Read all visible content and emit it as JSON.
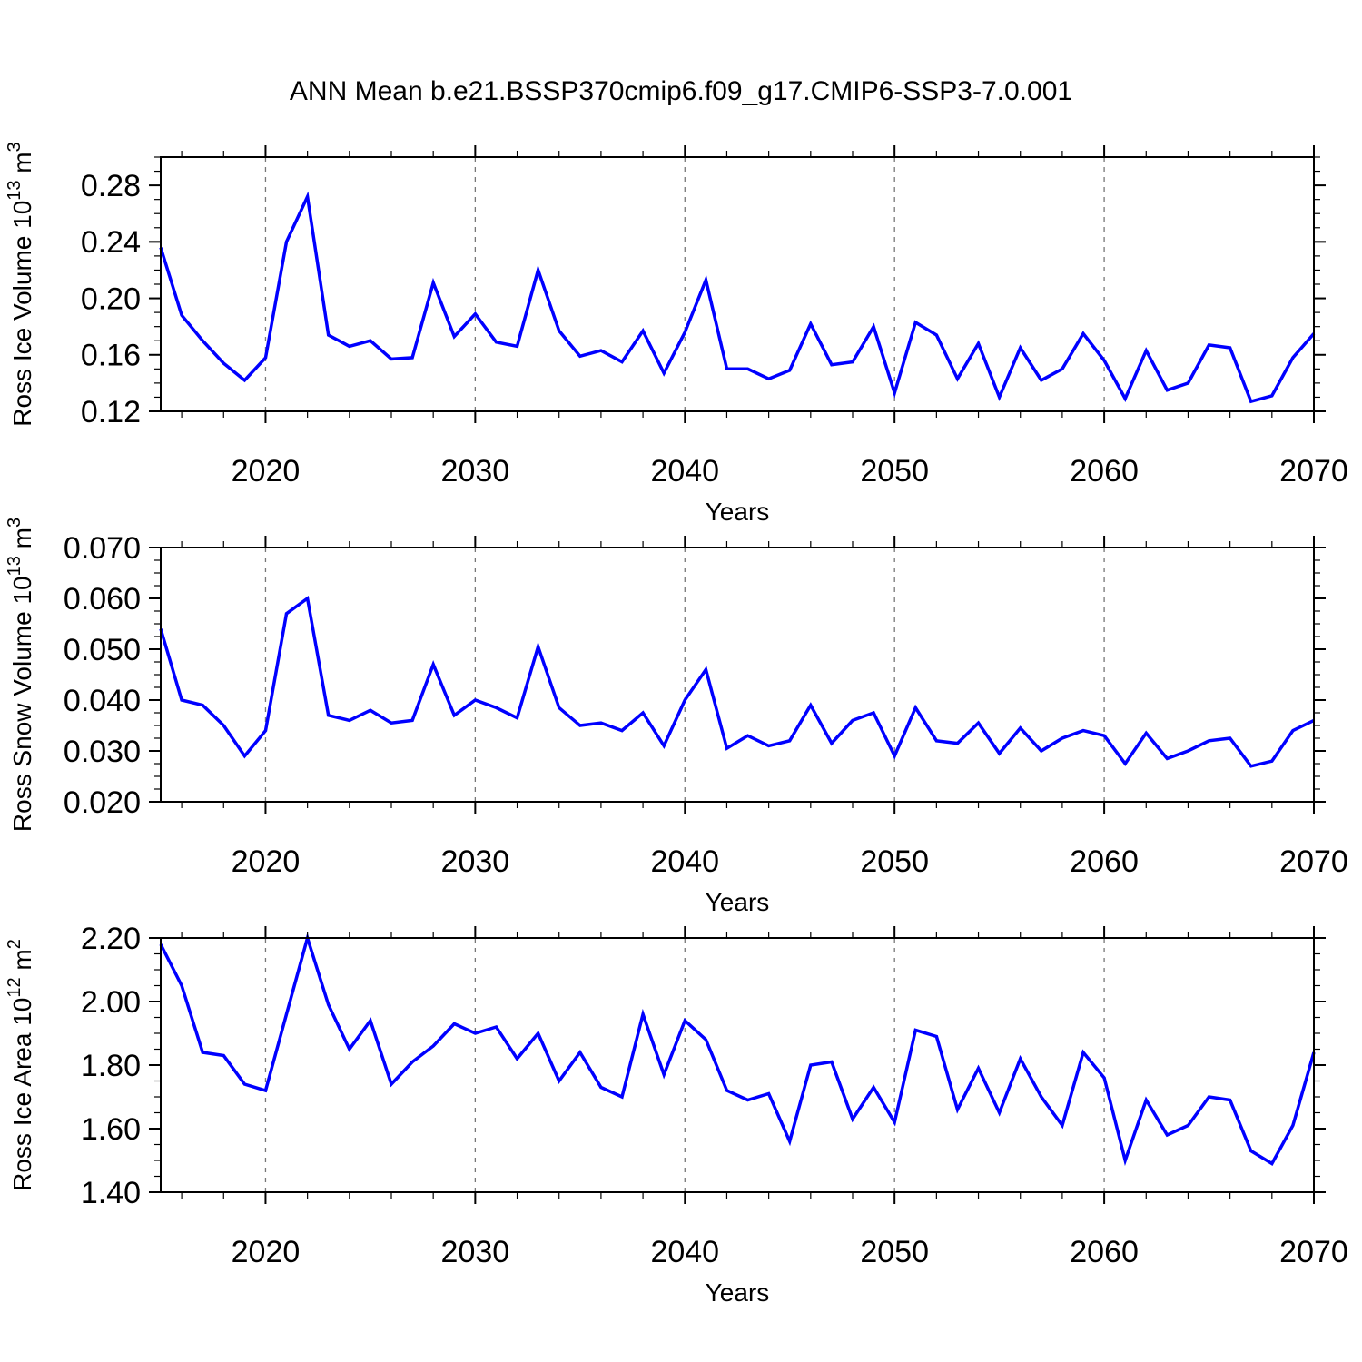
{
  "title": "ANN Mean b.e21.BSSP370cmip6.f09_g17.CMIP6-SSP3-7.0.001",
  "colors": {
    "line": "#0000ff",
    "axis": "#000000",
    "grid": "#777777",
    "background": "#ffffff"
  },
  "chart_data": {
    "type": "line",
    "title": "ANN Mean b.e21.BSSP370cmip6.f09_g17.CMIP6-SSP3-7.0.001",
    "xlabel": "Years",
    "x_range": [
      2015,
      2070
    ],
    "xticks": [
      2020,
      2030,
      2040,
      2050,
      2060,
      2070
    ],
    "xtick_minor_step": 2,
    "grid_years": [
      2020,
      2030,
      2040,
      2050,
      2060
    ],
    "legend": "none",
    "years": [
      2015,
      2016,
      2017,
      2018,
      2019,
      2020,
      2021,
      2022,
      2023,
      2024,
      2025,
      2026,
      2027,
      2028,
      2029,
      2030,
      2031,
      2032,
      2033,
      2034,
      2035,
      2036,
      2037,
      2038,
      2039,
      2040,
      2041,
      2042,
      2043,
      2044,
      2045,
      2046,
      2047,
      2048,
      2049,
      2050,
      2051,
      2052,
      2053,
      2054,
      2055,
      2056,
      2057,
      2058,
      2059,
      2060,
      2061,
      2062,
      2063,
      2064,
      2065,
      2066,
      2067,
      2068,
      2069,
      2070
    ],
    "charts": [
      {
        "id": "ross-ice-volume",
        "ylabel_text": "Ross Ice Volume 10^13 m^3",
        "ylabel_parts": [
          {
            "t": "Ross Ice Volume 10"
          },
          {
            "t": "13",
            "sup": true
          },
          {
            "t": " m"
          },
          {
            "t": "3",
            "sup": true
          }
        ],
        "xlabel": "Years",
        "ylim": [
          0.12,
          0.3
        ],
        "yticks": [
          0.12,
          0.16,
          0.2,
          0.24,
          0.28
        ],
        "ytick_labels": [
          "0.12",
          "0.16",
          "0.20",
          "0.24",
          "0.28"
        ],
        "y_minor_step": 0.01,
        "values": [
          0.236,
          0.188,
          0.17,
          0.154,
          0.142,
          0.158,
          0.24,
          0.272,
          0.174,
          0.166,
          0.17,
          0.157,
          0.158,
          0.211,
          0.173,
          0.189,
          0.169,
          0.166,
          0.22,
          0.177,
          0.159,
          0.163,
          0.155,
          0.177,
          0.147,
          0.176,
          0.213,
          0.15,
          0.15,
          0.143,
          0.149,
          0.182,
          0.153,
          0.155,
          0.18,
          0.133,
          0.183,
          0.174,
          0.143,
          0.168,
          0.13,
          0.165,
          0.142,
          0.15,
          0.175,
          0.156,
          0.129,
          0.163,
          0.135,
          0.14,
          0.167,
          0.165,
          0.127,
          0.131,
          0.158,
          0.175
        ]
      },
      {
        "id": "ross-snow-volume",
        "ylabel_text": "Ross Snow Volume 10^13 m^3",
        "ylabel_parts": [
          {
            "t": "Ross Snow Volume 10"
          },
          {
            "t": "13",
            "sup": true
          },
          {
            "t": " m"
          },
          {
            "t": "3",
            "sup": true
          }
        ],
        "xlabel": "Years",
        "ylim": [
          0.02,
          0.07
        ],
        "yticks": [
          0.02,
          0.03,
          0.04,
          0.05,
          0.06,
          0.07
        ],
        "ytick_labels": [
          "0.020",
          "0.030",
          "0.040",
          "0.050",
          "0.060",
          "0.070"
        ],
        "y_minor_step": 0.0025,
        "values": [
          0.054,
          0.04,
          0.039,
          0.035,
          0.029,
          0.034,
          0.057,
          0.06,
          0.037,
          0.036,
          0.038,
          0.0355,
          0.036,
          0.047,
          0.037,
          0.04,
          0.0385,
          0.0365,
          0.0505,
          0.0385,
          0.035,
          0.0355,
          0.034,
          0.0375,
          0.031,
          0.04,
          0.046,
          0.0305,
          0.033,
          0.031,
          0.032,
          0.039,
          0.0315,
          0.036,
          0.0375,
          0.029,
          0.0385,
          0.032,
          0.0315,
          0.0355,
          0.0295,
          0.0345,
          0.03,
          0.0325,
          0.034,
          0.033,
          0.0275,
          0.0335,
          0.0285,
          0.03,
          0.032,
          0.0325,
          0.027,
          0.028,
          0.034,
          0.036
        ]
      },
      {
        "id": "ross-ice-area",
        "ylabel_text": "Ross Ice Area 10^12 m^2",
        "ylabel_parts": [
          {
            "t": "Ross Ice Area 10"
          },
          {
            "t": "12",
            "sup": true
          },
          {
            "t": " m"
          },
          {
            "t": "2",
            "sup": true
          }
        ],
        "xlabel": "Years",
        "ylim": [
          1.4,
          2.2
        ],
        "yticks": [
          1.4,
          1.6,
          1.8,
          2.0,
          2.2
        ],
        "ytick_labels": [
          "1.40",
          "1.60",
          "1.80",
          "2.00",
          "2.20"
        ],
        "y_minor_step": 0.05,
        "values": [
          2.18,
          2.05,
          1.84,
          1.83,
          1.74,
          1.72,
          1.96,
          2.2,
          1.99,
          1.85,
          1.94,
          1.74,
          1.81,
          1.86,
          1.93,
          1.9,
          1.92,
          1.82,
          1.9,
          1.75,
          1.84,
          1.73,
          1.7,
          1.96,
          1.77,
          1.94,
          1.88,
          1.72,
          1.69,
          1.71,
          1.56,
          1.8,
          1.81,
          1.63,
          1.73,
          1.62,
          1.91,
          1.89,
          1.66,
          1.79,
          1.65,
          1.82,
          1.7,
          1.61,
          1.84,
          1.76,
          1.5,
          1.69,
          1.58,
          1.61,
          1.7,
          1.69,
          1.53,
          1.49,
          1.61,
          1.84
        ]
      }
    ]
  }
}
